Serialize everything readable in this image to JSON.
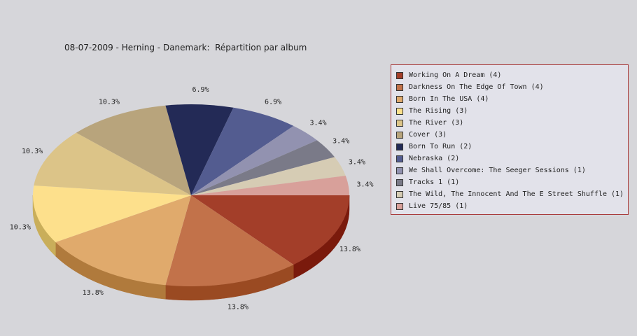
{
  "chart_data": {
    "type": "pie",
    "title": "08-07-2009 - Herning - Danemark:  Répartition par album",
    "legend_position": "right",
    "slices": [
      {
        "name": "Working On A Dream",
        "count": 4,
        "percent": 13.8,
        "label": "13.8%",
        "legend": "Working On A Dream (4)",
        "color": "#a33e29",
        "side": "#7a1a0c"
      },
      {
        "name": "Darkness On The Edge Of Town",
        "count": 4,
        "percent": 13.8,
        "label": "13.8%",
        "legend": "Darkness On The Edge Of Town (4)",
        "color": "#c2724a",
        "side": "#9a4a22"
      },
      {
        "name": "Born In The USA",
        "count": 4,
        "percent": 13.8,
        "label": "13.8%",
        "legend": "Born In The USA (4)",
        "color": "#e0aa6c",
        "side": "#b07a3c"
      },
      {
        "name": "The Rising",
        "count": 3,
        "percent": 10.3,
        "label": "10.3%",
        "legend": "The Rising (3)",
        "color": "#fde08c",
        "side": "#c9ae5a"
      },
      {
        "name": "The River",
        "count": 3,
        "percent": 10.3,
        "label": "10.3%",
        "legend": "The River (3)",
        "color": "#dcc488",
        "side": "#aa9458"
      },
      {
        "name": "Cover",
        "count": 3,
        "percent": 10.3,
        "label": "10.3%",
        "legend": "Cover (3)",
        "color": "#b8a47c",
        "side": "#88744c"
      },
      {
        "name": "Born To Run",
        "count": 2,
        "percent": 6.9,
        "label": "6.9%",
        "legend": "Born To Run (2)",
        "color": "#232a56",
        "side": "#111630"
      },
      {
        "name": "Nebraska",
        "count": 2,
        "percent": 6.9,
        "label": "6.9%",
        "legend": "Nebraska (2)",
        "color": "#535c90",
        "side": "#333a66"
      },
      {
        "name": "We Shall Overcome: The Seeger Sessions",
        "count": 1,
        "percent": 3.4,
        "label": "3.4%",
        "legend": "We Shall Overcome: The Seeger Sessions (1)",
        "color": "#9292b0",
        "side": "#6a6a88"
      },
      {
        "name": "Tracks 1",
        "count": 1,
        "percent": 3.4,
        "label": "3.4%",
        "legend": "Tracks 1 (1)",
        "color": "#7a7a88",
        "side": "#55555f"
      },
      {
        "name": "The Wild, The Innocent And The E Street Shuffle",
        "count": 1,
        "percent": 3.4,
        "label": "3.4%",
        "legend": "The Wild, The Innocent And The E Street Shuffle (1)",
        "color": "#d6ccb4",
        "side": "#a89e86"
      },
      {
        "name": "Live 75/85",
        "count": 1,
        "percent": 3.4,
        "label": "3.4%",
        "legend": "Live 75/85 (1)",
        "color": "#d8a09a",
        "side": "#a87068"
      }
    ]
  },
  "colors": {
    "background": "#d6d6da",
    "legend_background": "#e2e2ea",
    "legend_border": "#a83a3a"
  }
}
